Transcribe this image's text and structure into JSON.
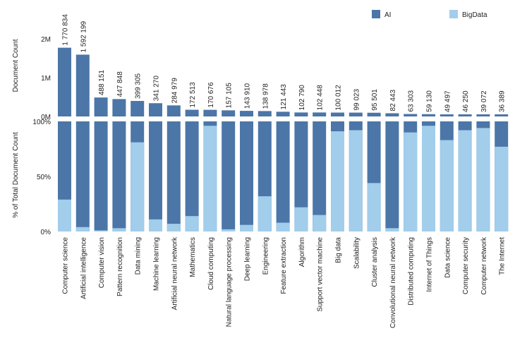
{
  "chart_data": {
    "type": "bar",
    "legend": {
      "position": "top-right",
      "entries": [
        "AI",
        "BigData"
      ]
    },
    "colors": {
      "AI": "#4b76a7",
      "BigData": "#a2cdeb"
    },
    "top_panel": {
      "ylabel": "Document Count",
      "yticks": [
        {
          "value": 0,
          "label": "0M"
        },
        {
          "value": 1000000,
          "label": "1M"
        },
        {
          "value": 2000000,
          "label": "2M"
        }
      ],
      "ylim": [
        0,
        2000000
      ]
    },
    "bottom_panel": {
      "ylabel": "% of Total Document Count",
      "yticks": [
        {
          "value": 0,
          "label": "0%"
        },
        {
          "value": 50,
          "label": "50%"
        },
        {
          "value": 100,
          "label": "100%"
        }
      ],
      "ylim": [
        0,
        100
      ]
    },
    "categories": [
      "Computer science",
      "Artificial intelligence",
      "Computer vision",
      "Pattern recognition",
      "Data mining",
      "Machine learning",
      "Artificial neural network",
      "Mathematics",
      "Cloud computing",
      "Natural language processing",
      "Deep learning",
      "Engineering",
      "Feature extraction",
      "Algorithm",
      "Support vector machine",
      "Big data",
      "Scalability",
      "Cluster analysis",
      "Convolutional neural network",
      "Distributed computing",
      "Internet of Things",
      "Data science",
      "Computer security",
      "Computer network",
      "The Internet"
    ],
    "totals": [
      1770834,
      1592199,
      488151,
      447848,
      399305,
      341270,
      284979,
      172513,
      170676,
      157105,
      143910,
      138978,
      121443,
      102790,
      102448,
      100012,
      99023,
      95501,
      82443,
      63303,
      59130,
      49497,
      46250,
      39072,
      36389
    ],
    "total_labels": [
      "1 770 834",
      "1 592 199",
      "488 151",
      "447 848",
      "399 305",
      "341 270",
      "284 979",
      "172 513",
      "170 676",
      "157 105",
      "143 910",
      "138 978",
      "121 443",
      "102 790",
      "102 448",
      "100 012",
      "99 023",
      "95 501",
      "82 443",
      "63 303",
      "59 130",
      "49 497",
      "46 250",
      "39 072",
      "36 389"
    ],
    "bigdata_percent": [
      29,
      4,
      1,
      3,
      81,
      11,
      7,
      14,
      96,
      2,
      6,
      32,
      8,
      22,
      15,
      91,
      92,
      44,
      3,
      90,
      96,
      83,
      92,
      94,
      77
    ]
  }
}
